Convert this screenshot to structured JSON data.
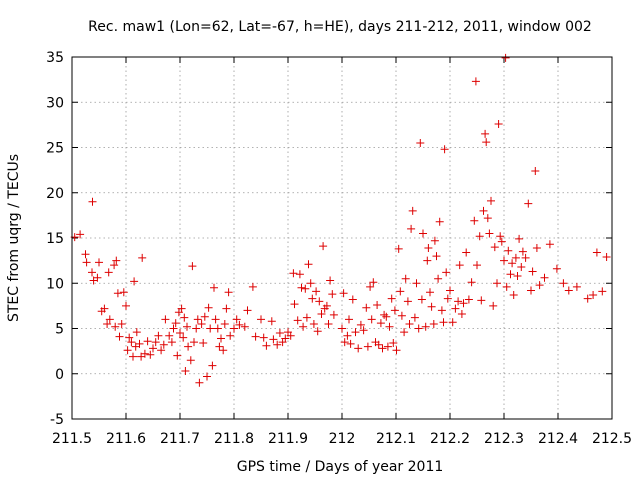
{
  "chart_data": {
    "type": "scatter",
    "title": "Rec. maw1 (Lon=62, Lat=-67, h=HE), days 211-212, 2011, window 002",
    "xlabel": "GPS time / Days of year 2011",
    "ylabel": "STEC from uqrg / TECUs",
    "xlim": [
      211.5,
      212.5
    ],
    "ylim": [
      -5,
      35
    ],
    "xticks": [
      "211.5",
      "211.6",
      "211.7",
      "211.8",
      "211.9",
      "212",
      "212.1",
      "212.2",
      "212.3",
      "212.4",
      "212.5"
    ],
    "yticks": [
      "-5",
      "0",
      "5",
      "10",
      "15",
      "20",
      "25",
      "30",
      "35"
    ],
    "grid": true,
    "marker": "plus",
    "color": "#dd0000",
    "points": [
      [
        211.505,
        15.1
      ],
      [
        211.515,
        15.4
      ],
      [
        211.525,
        13.2
      ],
      [
        211.527,
        12.3
      ],
      [
        211.537,
        11.2
      ],
      [
        211.538,
        19.0
      ],
      [
        211.54,
        10.3
      ],
      [
        211.547,
        10.6
      ],
      [
        211.55,
        12.3
      ],
      [
        211.555,
        6.9
      ],
      [
        211.56,
        7.2
      ],
      [
        211.565,
        5.5
      ],
      [
        211.568,
        11.2
      ],
      [
        211.57,
        6.0
      ],
      [
        211.578,
        12.0
      ],
      [
        211.58,
        5.2
      ],
      [
        211.582,
        12.5
      ],
      [
        211.585,
        8.9
      ],
      [
        211.588,
        4.1
      ],
      [
        211.592,
        5.5
      ],
      [
        211.596,
        9.0
      ],
      [
        211.6,
        7.5
      ],
      [
        211.603,
        2.6
      ],
      [
        211.606,
        4.0
      ],
      [
        211.61,
        3.5
      ],
      [
        211.613,
        1.9
      ],
      [
        211.615,
        10.2
      ],
      [
        211.618,
        3.0
      ],
      [
        211.62,
        4.6
      ],
      [
        211.625,
        3.3
      ],
      [
        211.628,
        1.9
      ],
      [
        211.63,
        12.8
      ],
      [
        211.635,
        2.2
      ],
      [
        211.64,
        3.6
      ],
      [
        211.645,
        2.1
      ],
      [
        211.65,
        2.8
      ],
      [
        211.655,
        3.5
      ],
      [
        211.66,
        4.2
      ],
      [
        211.665,
        2.6
      ],
      [
        211.67,
        3.2
      ],
      [
        211.673,
        6.0
      ],
      [
        211.68,
        4.2
      ],
      [
        211.685,
        3.5
      ],
      [
        211.688,
        5.0
      ],
      [
        211.692,
        5.6
      ],
      [
        211.695,
        2.0
      ],
      [
        211.698,
        6.8
      ],
      [
        211.7,
        4.5
      ],
      [
        211.703,
        7.2
      ],
      [
        211.706,
        4.0
      ],
      [
        211.708,
        6.2
      ],
      [
        211.71,
        0.3
      ],
      [
        211.713,
        5.2
      ],
      [
        211.715,
        3.0
      ],
      [
        211.72,
        1.5
      ],
      [
        211.723,
        11.9
      ],
      [
        211.726,
        3.5
      ],
      [
        211.73,
        5.0
      ],
      [
        211.733,
        6.0
      ],
      [
        211.736,
        -1.0
      ],
      [
        211.74,
        5.5
      ],
      [
        211.743,
        3.4
      ],
      [
        211.746,
        6.3
      ],
      [
        211.75,
        -0.3
      ],
      [
        211.753,
        7.3
      ],
      [
        211.756,
        5.0
      ],
      [
        211.76,
        0.9
      ],
      [
        211.763,
        9.5
      ],
      [
        211.766,
        6.0
      ],
      [
        211.77,
        5.0
      ],
      [
        211.773,
        3.0
      ],
      [
        211.776,
        3.9
      ],
      [
        211.78,
        2.6
      ],
      [
        211.783,
        5.5
      ],
      [
        211.786,
        7.2
      ],
      [
        211.79,
        9.0
      ],
      [
        211.793,
        4.2
      ],
      [
        211.8,
        5.0
      ],
      [
        211.805,
        6.0
      ],
      [
        211.81,
        5.4
      ],
      [
        211.82,
        5.2
      ],
      [
        211.825,
        7.0
      ],
      [
        211.835,
        9.6
      ],
      [
        211.84,
        4.1
      ],
      [
        211.85,
        6.0
      ],
      [
        211.855,
        4.0
      ],
      [
        211.86,
        3.1
      ],
      [
        211.87,
        5.8
      ],
      [
        211.873,
        3.8
      ],
      [
        211.88,
        3.2
      ],
      [
        211.885,
        4.5
      ],
      [
        211.89,
        3.5
      ],
      [
        211.895,
        3.9
      ],
      [
        211.9,
        4.6
      ],
      [
        211.905,
        4.2
      ],
      [
        211.91,
        11.1
      ],
      [
        211.912,
        7.7
      ],
      [
        211.918,
        5.9
      ],
      [
        211.922,
        11.0
      ],
      [
        211.925,
        9.5
      ],
      [
        211.928,
        5.2
      ],
      [
        211.932,
        9.4
      ],
      [
        211.935,
        6.2
      ],
      [
        211.938,
        12.1
      ],
      [
        211.942,
        10.0
      ],
      [
        211.945,
        8.3
      ],
      [
        211.948,
        5.5
      ],
      [
        211.952,
        9.1
      ],
      [
        211.955,
        4.7
      ],
      [
        211.958,
        8.0
      ],
      [
        211.962,
        6.6
      ],
      [
        211.965,
        14.1
      ],
      [
        211.968,
        7.2
      ],
      [
        211.972,
        7.5
      ],
      [
        211.975,
        5.5
      ],
      [
        211.978,
        10.3
      ],
      [
        211.982,
        8.8
      ],
      [
        211.985,
        6.5
      ],
      [
        212.0,
        5.0
      ],
      [
        212.003,
        8.9
      ],
      [
        212.005,
        3.5
      ],
      [
        212.01,
        4.2
      ],
      [
        212.013,
        6.0
      ],
      [
        212.016,
        3.3
      ],
      [
        212.02,
        8.2
      ],
      [
        212.025,
        4.6
      ],
      [
        212.03,
        2.8
      ],
      [
        212.035,
        5.4
      ],
      [
        212.04,
        4.8
      ],
      [
        212.045,
        7.3
      ],
      [
        212.048,
        3.0
      ],
      [
        212.052,
        9.6
      ],
      [
        212.055,
        6.0
      ],
      [
        212.058,
        10.1
      ],
      [
        212.062,
        3.5
      ],
      [
        212.065,
        7.6
      ],
      [
        212.068,
        3.2
      ],
      [
        212.072,
        5.6
      ],
      [
        212.075,
        2.8
      ],
      [
        212.078,
        6.5
      ],
      [
        212.082,
        6.3
      ],
      [
        212.085,
        3.0
      ],
      [
        212.088,
        5.2
      ],
      [
        212.092,
        8.3
      ],
      [
        212.095,
        3.4
      ],
      [
        212.098,
        7.0
      ],
      [
        212.101,
        2.6
      ],
      [
        212.105,
        13.8
      ],
      [
        212.108,
        9.1
      ],
      [
        212.111,
        6.4
      ],
      [
        212.115,
        4.6
      ],
      [
        212.118,
        10.5
      ],
      [
        212.122,
        8.0
      ],
      [
        212.125,
        5.5
      ],
      [
        212.128,
        16.0
      ],
      [
        212.131,
        18.0
      ],
      [
        212.135,
        6.2
      ],
      [
        212.138,
        10.0
      ],
      [
        212.142,
        5.0
      ],
      [
        212.145,
        25.5
      ],
      [
        212.148,
        8.2
      ],
      [
        212.15,
        15.5
      ],
      [
        212.155,
        5.2
      ],
      [
        212.158,
        12.5
      ],
      [
        212.16,
        13.9
      ],
      [
        212.163,
        9.0
      ],
      [
        212.166,
        7.4
      ],
      [
        212.17,
        5.5
      ],
      [
        212.172,
        14.7
      ],
      [
        212.175,
        13.0
      ],
      [
        212.178,
        10.5
      ],
      [
        212.181,
        16.8
      ],
      [
        212.185,
        7.0
      ],
      [
        212.188,
        5.7
      ],
      [
        212.19,
        24.8
      ],
      [
        212.193,
        11.2
      ],
      [
        212.196,
        8.3
      ],
      [
        212.2,
        9.2
      ],
      [
        212.205,
        5.7
      ],
      [
        212.21,
        7.2
      ],
      [
        212.215,
        8.0
      ],
      [
        212.218,
        12.0
      ],
      [
        212.222,
        6.6
      ],
      [
        212.225,
        7.8
      ],
      [
        212.23,
        13.4
      ],
      [
        212.235,
        8.2
      ],
      [
        212.24,
        10.1
      ],
      [
        212.245,
        16.9
      ],
      [
        212.248,
        32.3
      ],
      [
        212.25,
        12.0
      ],
      [
        212.255,
        15.2
      ],
      [
        212.258,
        8.1
      ],
      [
        212.262,
        18.0
      ],
      [
        212.265,
        26.5
      ],
      [
        212.267,
        25.6
      ],
      [
        212.27,
        17.2
      ],
      [
        212.273,
        15.5
      ],
      [
        212.276,
        19.1
      ],
      [
        212.28,
        7.5
      ],
      [
        212.283,
        14.0
      ],
      [
        212.287,
        10.0
      ],
      [
        212.29,
        27.6
      ],
      [
        212.293,
        15.2
      ],
      [
        212.296,
        14.6
      ],
      [
        212.3,
        12.5
      ],
      [
        212.303,
        34.9
      ],
      [
        212.305,
        9.6
      ],
      [
        212.308,
        13.6
      ],
      [
        212.312,
        11.0
      ],
      [
        212.315,
        12.2
      ],
      [
        212.318,
        8.7
      ],
      [
        212.322,
        12.8
      ],
      [
        212.325,
        10.8
      ],
      [
        212.328,
        14.9
      ],
      [
        212.332,
        11.8
      ],
      [
        212.335,
        13.5
      ],
      [
        212.34,
        12.8
      ],
      [
        212.345,
        18.8
      ],
      [
        212.35,
        9.2
      ],
      [
        212.353,
        11.3
      ],
      [
        212.358,
        22.4
      ],
      [
        212.361,
        13.9
      ],
      [
        212.366,
        9.8
      ],
      [
        212.375,
        10.6
      ],
      [
        212.385,
        14.3
      ],
      [
        212.398,
        11.6
      ],
      [
        212.41,
        10.0
      ],
      [
        212.42,
        9.2
      ],
      [
        212.435,
        9.6
      ],
      [
        212.455,
        8.3
      ],
      [
        212.465,
        8.7
      ],
      [
        212.472,
        13.4
      ],
      [
        212.482,
        9.1
      ],
      [
        212.49,
        12.9
      ]
    ]
  }
}
